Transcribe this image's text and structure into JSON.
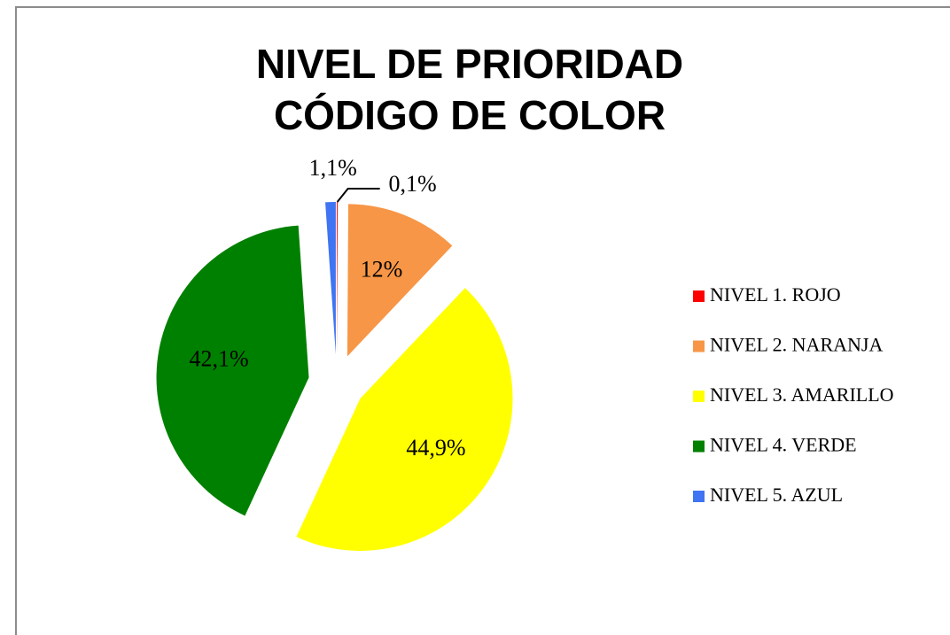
{
  "chart_data": {
    "type": "pie",
    "title": [
      "NIVEL DE PRIORIDAD",
      "CÓDIGO DE COLOR"
    ],
    "categories": [
      "NIVEL 1. ROJO",
      "NIVEL 2. NARANJA",
      "NIVEL 3. AMARILLO",
      "NIVEL 4. VERDE",
      "NIVEL 5. AZUL"
    ],
    "values": [
      0.1,
      12,
      44.9,
      42.1,
      1.1
    ],
    "value_labels": [
      "0,1%",
      "12%",
      "44,9%",
      "42,1%",
      "1,1%"
    ],
    "colors": [
      "#ff0000",
      "#f79646",
      "#ffff00",
      "#008000",
      "#3f74f2"
    ],
    "legend": "right"
  }
}
